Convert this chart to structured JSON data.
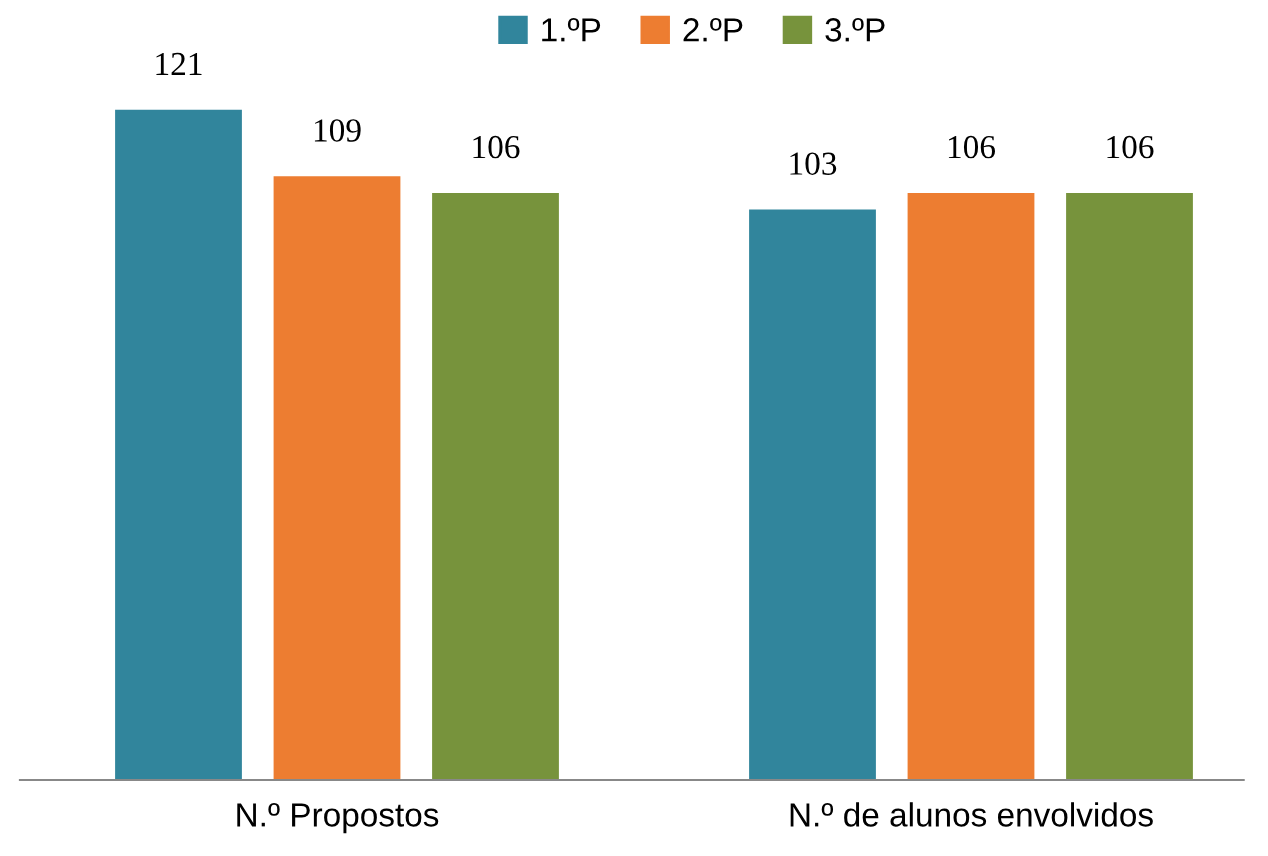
{
  "chart_data": {
    "type": "bar",
    "categories": [
      "N.º Propostos",
      "N.º de alunos envolvidos"
    ],
    "series": [
      {
        "name": "1.ºP",
        "color": "#31859c",
        "values": [
          121,
          103
        ]
      },
      {
        "name": "2.ºP",
        "color": "#ed7d31",
        "values": [
          109,
          106
        ]
      },
      {
        "name": "3.ºP",
        "color": "#77933c",
        "values": [
          106,
          106
        ]
      }
    ],
    "data_labels": true,
    "legend": "top",
    "grid": false,
    "tick_labels": "x"
  }
}
